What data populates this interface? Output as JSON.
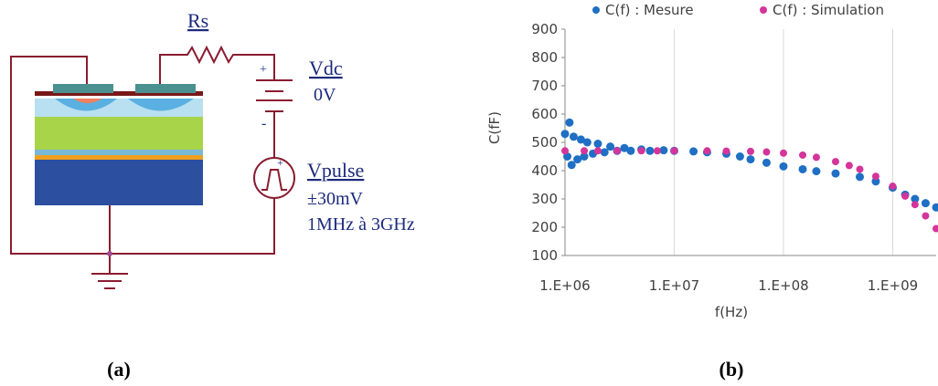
{
  "diagram": {
    "resistor": "Rs",
    "dc_source": "Vdc",
    "dc_value": "0V",
    "pulse_source": "Vpulse",
    "pulse_amplitude": "±30mV",
    "pulse_range": "1MHz à 3GHz"
  },
  "captions": [
    "(a)",
    "(b)"
  ],
  "chart_data": {
    "type": "scatter",
    "x_label": "f(Hz)",
    "y_label": "C(fF)",
    "xlog": true,
    "grid": "x",
    "xlim": [
      1000000,
      2500000000
    ],
    "ylim": [
      100,
      900
    ],
    "xticks": [
      {
        "value": 1000000,
        "label": "1.E+06"
      },
      {
        "value": 10000000,
        "label": "1.E+07"
      },
      {
        "value": 100000000,
        "label": "1.E+08"
      },
      {
        "value": 1000000000,
        "label": "1.E+09"
      }
    ],
    "yticks": [
      100,
      200,
      300,
      400,
      500,
      600,
      700,
      800,
      900
    ],
    "series": [
      {
        "name": "C(f) : Mesure",
        "color": "#1f6fc4",
        "x": [
          1000000,
          1050000,
          1100000,
          1150000,
          1200000,
          1300000,
          1400000,
          1500000,
          1600000,
          1800000,
          2000000,
          2300000,
          2600000,
          3000000,
          3500000,
          4000000,
          5000000,
          6000000,
          8000000,
          10000000,
          15000000,
          20000000,
          30000000,
          40000000,
          50000000,
          70000000,
          100000000,
          150000000,
          200000000,
          300000000,
          500000000,
          700000000,
          1000000000,
          1300000000,
          1600000000,
          2000000000,
          2500000000
        ],
        "values": [
          530,
          450,
          570,
          420,
          520,
          440,
          510,
          450,
          500,
          460,
          495,
          465,
          485,
          470,
          480,
          470,
          475,
          470,
          472,
          470,
          468,
          465,
          460,
          450,
          440,
          428,
          415,
          405,
          398,
          390,
          378,
          362,
          340,
          315,
          300,
          285,
          270
        ]
      },
      {
        "name": "C(f) : Simulation",
        "color": "#d4359a",
        "x": [
          1000000,
          1500000,
          2000000,
          3000000,
          5000000,
          7000000,
          10000000,
          20000000,
          30000000,
          50000000,
          70000000,
          100000000,
          150000000,
          200000000,
          300000000,
          400000000,
          500000000,
          700000000,
          1000000000,
          1300000000,
          1600000000,
          2000000000,
          2500000000
        ],
        "values": [
          470,
          470,
          470,
          470,
          470,
          470,
          470,
          470,
          469,
          468,
          466,
          462,
          455,
          447,
          432,
          418,
          405,
          380,
          345,
          310,
          280,
          240,
          195
        ]
      }
    ]
  }
}
